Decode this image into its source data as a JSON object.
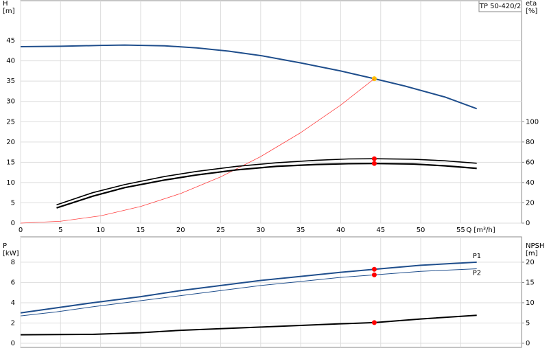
{
  "chart_data": [
    {
      "type": "line",
      "title": "TP 50-420/2",
      "xlabel": "Q [m³/h]",
      "ylabel": [
        "H",
        "[m]"
      ],
      "y2label": [
        "eta",
        "[%]"
      ],
      "xlim": [
        0,
        62.6
      ],
      "xticks": [
        0,
        5,
        10,
        15,
        20,
        25,
        30,
        35,
        40,
        45,
        50,
        55
      ],
      "ylim": [
        0,
        55
      ],
      "yticks": [
        0,
        5,
        10,
        15,
        20,
        25,
        30,
        35,
        40,
        45
      ],
      "y2lim": [
        0,
        220
      ],
      "y2ticks": [
        0,
        20,
        40,
        60,
        80,
        100
      ],
      "grid": true,
      "duty_x": 44.2,
      "series": [
        {
          "color": "#1f4e8c",
          "width": 2,
          "point_color": "#ffc000",
          "x": [
            0,
            5,
            10,
            13,
            18,
            22,
            26,
            30,
            35,
            40,
            44.2,
            48,
            53,
            57
          ],
          "values": [
            43.5,
            43.6,
            43.8,
            43.9,
            43.7,
            43.2,
            42.4,
            41.3,
            39.5,
            37.5,
            35.6,
            33.8,
            31.1,
            28.2
          ]
        },
        {
          "color": "#ff4040",
          "width": 0.8,
          "x": [
            0,
            5,
            10,
            15,
            20,
            25,
            30,
            35,
            40,
            44.2
          ],
          "values": [
            0,
            0.46,
            1.8,
            4.1,
            7.3,
            11.4,
            16.4,
            22.3,
            29.1,
            35.6
          ]
        },
        {
          "color": "#000000",
          "width": 1.6,
          "axis": "y2",
          "point_color": "#ff0000",
          "x": [
            4.5,
            9,
            13,
            18,
            22,
            27,
            32,
            37,
            41,
            44.2,
            49,
            53,
            57
          ],
          "values": [
            18,
            30,
            38,
            46,
            51,
            56,
            59.5,
            62,
            63.3,
            63.5,
            63,
            61.5,
            59
          ]
        },
        {
          "color": "#000000",
          "width": 2.2,
          "axis": "y2",
          "point_color": "#ff0000",
          "x": [
            4.5,
            9,
            13,
            18,
            22,
            27,
            32,
            37,
            41,
            44.2,
            49,
            53,
            57
          ],
          "values": [
            15,
            26.5,
            35,
            42.5,
            47.5,
            52.5,
            56,
            57.8,
            58.6,
            58.8,
            58.3,
            56.5,
            54
          ]
        }
      ]
    },
    {
      "type": "line",
      "ylabel": [
        "P",
        "[kW]"
      ],
      "y2label": [
        "NPSH",
        "[m]"
      ],
      "xlim": [
        0,
        62.6
      ],
      "ylim": [
        0,
        10.5
      ],
      "yticks": [
        0,
        2,
        4,
        6,
        8
      ],
      "y2lim": [
        0,
        26.25
      ],
      "y2ticks": [
        0,
        5,
        10,
        15,
        20
      ],
      "grid": true,
      "duty_x": 44.2,
      "series": [
        {
          "name": "P1",
          "color": "#1f4e8c",
          "width": 2,
          "point_color": "#ff0000",
          "x": [
            0,
            4.5,
            9,
            15,
            20,
            25,
            30,
            35,
            40,
            44.2,
            50,
            57
          ],
          "values": [
            3.0,
            3.5,
            4.0,
            4.6,
            5.2,
            5.7,
            6.2,
            6.6,
            7.0,
            7.3,
            7.7,
            8.0
          ]
        },
        {
          "name": "P2",
          "color": "#1f4e8c",
          "width": 1,
          "point_color": "#ff0000",
          "x": [
            0,
            4.5,
            9,
            15,
            20,
            25,
            30,
            35,
            40,
            44.2,
            50,
            57
          ],
          "values": [
            2.7,
            3.1,
            3.6,
            4.2,
            4.7,
            5.2,
            5.7,
            6.1,
            6.5,
            6.75,
            7.1,
            7.35
          ]
        },
        {
          "color": "#000000",
          "width": 2,
          "axis": "y2",
          "point_color": "#ff0000",
          "x": [
            0,
            9,
            15,
            20,
            25,
            30,
            35,
            40,
            44.2,
            50,
            57
          ],
          "values": [
            2.1,
            2.2,
            2.6,
            3.2,
            3.6,
            4.0,
            4.4,
            4.8,
            5.1,
            6.0,
            6.9
          ]
        }
      ]
    }
  ]
}
